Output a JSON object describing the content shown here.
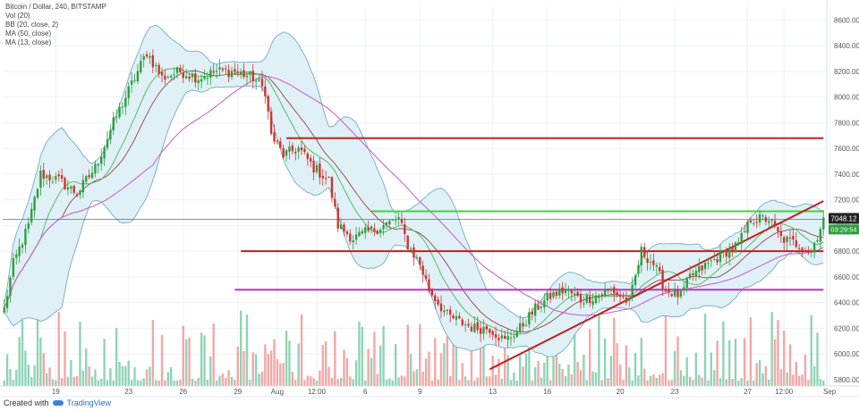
{
  "legend": {
    "title": "Bitcoin / Dollar, 240, BITSTAMP",
    "vol": "Vol (20)",
    "bb": "BB (20, close, 2)",
    "ma50": "MA (50, close)",
    "ma13": "MA (13, close)"
  },
  "footer": {
    "created": "Created with",
    "brand": "TradingView"
  },
  "colors": {
    "up": "#2e9e3e",
    "down": "#d0342c",
    "vol_up": "#8fd3b5",
    "vol_down": "#f4a6a6",
    "bb_fill": "#dff0f7",
    "bb_line": "#7fb2c7",
    "ma13": "#5cba5c",
    "ma50": "#c45ac4",
    "ma_basis": "#8a3030",
    "red_line": "#c41e1e",
    "green_line": "#39d639",
    "magenta_line": "#c330c3"
  },
  "chart_data": {
    "type": "candlestick",
    "title": "Bitcoin / Dollar, 240, BITSTAMP",
    "ylim": [
      5750,
      8700
    ],
    "y_ticks": [
      5800,
      6000,
      6200,
      6400,
      6600,
      6800,
      7000,
      7200,
      7400,
      7600,
      7800,
      8000,
      8200,
      8400,
      8600
    ],
    "x_ticks": [
      {
        "label": "19",
        "index": 17
      },
      {
        "label": "23",
        "index": 41
      },
      {
        "label": "26",
        "index": 59
      },
      {
        "label": "29",
        "index": 77
      },
      {
        "label": "Aug",
        "index": 90
      },
      {
        "label": "12:00",
        "index": 103
      },
      {
        "label": "6",
        "index": 119
      },
      {
        "label": "9",
        "index": 137
      },
      {
        "label": "13",
        "index": 161
      },
      {
        "label": "16",
        "index": 179
      },
      {
        "label": "20",
        "index": 203
      },
      {
        "label": "23",
        "index": 221
      },
      {
        "label": "27",
        "index": 245
      },
      {
        "label": "12:00",
        "index": 257
      },
      {
        "label": "Sep",
        "index": 272
      }
    ],
    "anchors": [
      [
        0,
        6350
      ],
      [
        3,
        6700
      ],
      [
        8,
        7000
      ],
      [
        12,
        7400
      ],
      [
        18,
        7350
      ],
      [
        24,
        7250
      ],
      [
        30,
        7450
      ],
      [
        36,
        7800
      ],
      [
        42,
        8100
      ],
      [
        47,
        8350
      ],
      [
        52,
        8150
      ],
      [
        58,
        8200
      ],
      [
        64,
        8150
      ],
      [
        70,
        8200
      ],
      [
        76,
        8200
      ],
      [
        82,
        8150
      ],
      [
        86,
        8050
      ],
      [
        88,
        7700
      ],
      [
        92,
        7550
      ],
      [
        97,
        7600
      ],
      [
        102,
        7450
      ],
      [
        107,
        7350
      ],
      [
        110,
        7000
      ],
      [
        115,
        6900
      ],
      [
        120,
        6950
      ],
      [
        125,
        7000
      ],
      [
        130,
        7050
      ],
      [
        133,
        6850
      ],
      [
        137,
        6700
      ],
      [
        140,
        6500
      ],
      [
        146,
        6300
      ],
      [
        150,
        6250
      ],
      [
        155,
        6200
      ],
      [
        160,
        6200
      ],
      [
        165,
        6100
      ],
      [
        170,
        6200
      ],
      [
        175,
        6350
      ],
      [
        180,
        6450
      ],
      [
        185,
        6500
      ],
      [
        190,
        6420
      ],
      [
        195,
        6450
      ],
      [
        200,
        6500
      ],
      [
        206,
        6400
      ],
      [
        210,
        6800
      ],
      [
        214,
        6700
      ],
      [
        218,
        6500
      ],
      [
        223,
        6450
      ],
      [
        226,
        6600
      ],
      [
        232,
        6700
      ],
      [
        238,
        6800
      ],
      [
        242,
        6850
      ],
      [
        246,
        7050
      ],
      [
        252,
        7050
      ],
      [
        256,
        6900
      ],
      [
        262,
        6850
      ],
      [
        266,
        6800
      ],
      [
        270,
        7050
      ]
    ],
    "count": 271,
    "last_price": "7048.12",
    "countdown": "03:29:54",
    "horizontal_lines": [
      {
        "y": 7680,
        "x_start_index": 93,
        "x_end_index": 270,
        "color": "red"
      },
      {
        "y": 7110,
        "x_start_index": 121,
        "x_end_index": 270,
        "color": "green"
      },
      {
        "y": 6800,
        "x_start_index": 78,
        "x_end_index": 270,
        "color": "red"
      },
      {
        "y": 6500,
        "x_start_index": 76,
        "x_end_index": 270,
        "color": "magenta"
      }
    ],
    "trend_line": {
      "x0_index": 160,
      "y0": 5880,
      "x1_index": 270,
      "y1": 7190,
      "color": "red"
    }
  }
}
